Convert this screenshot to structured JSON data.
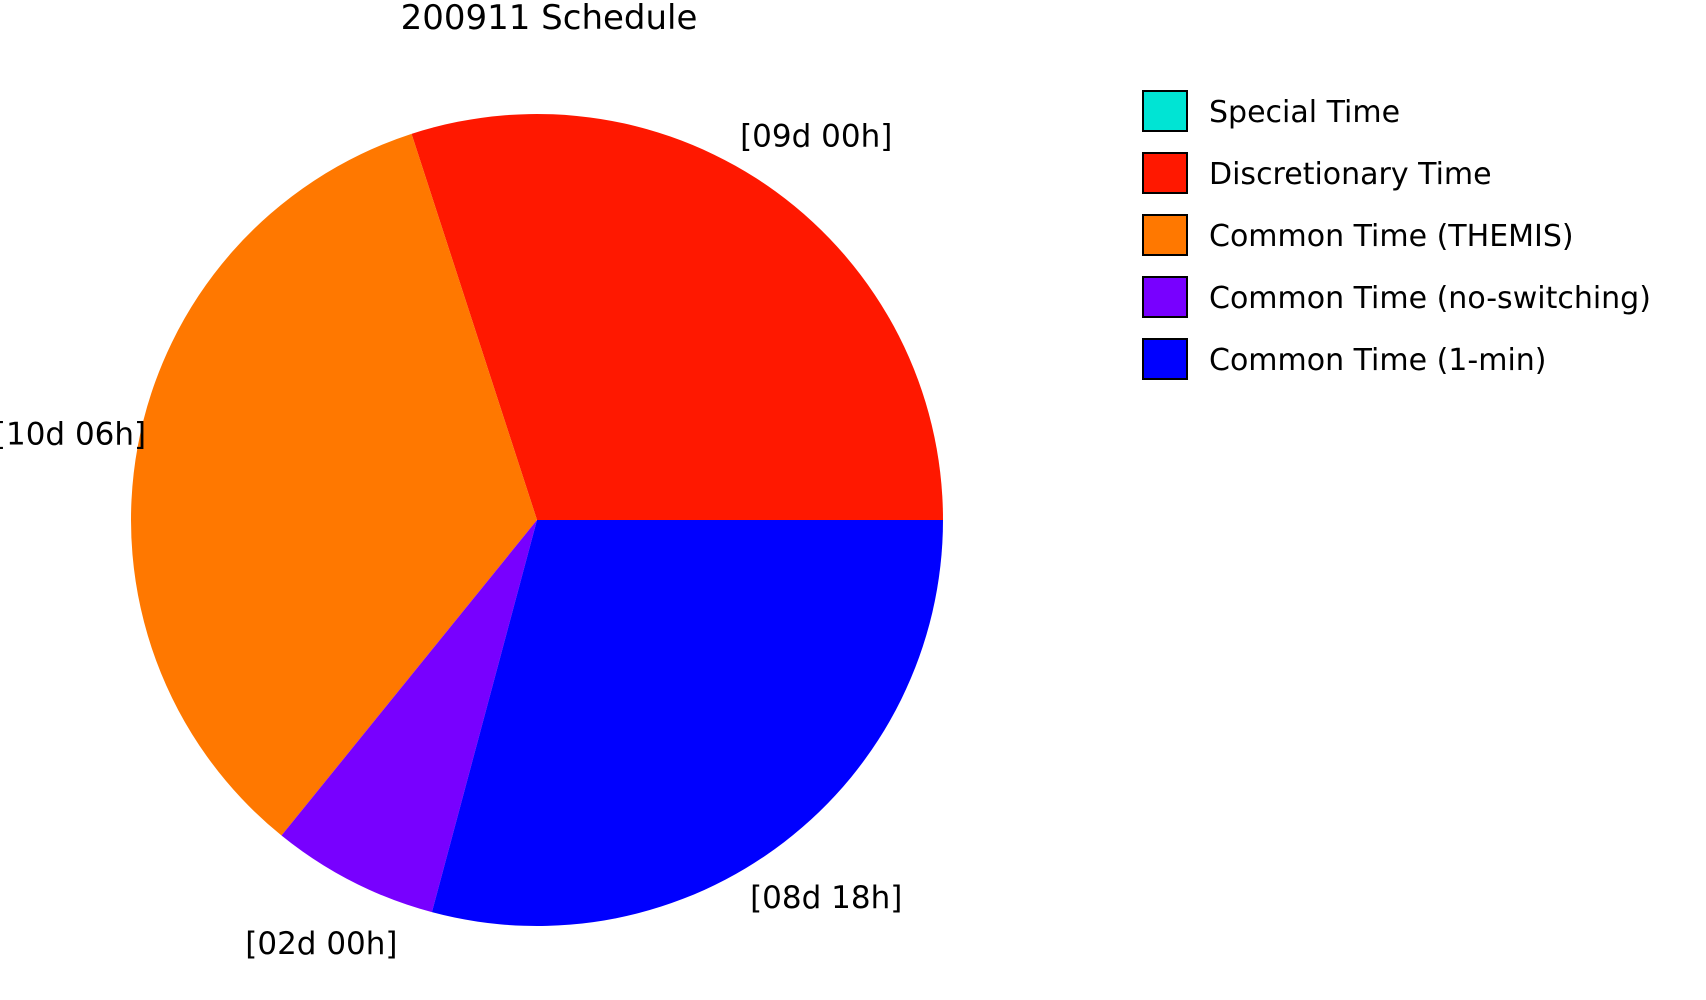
{
  "chart_data": {
    "type": "pie",
    "title": "200911 Schedule",
    "direction": "counterclockwise-from-east",
    "slices": [
      {
        "name": "Discretionary Time",
        "value": 9.0,
        "label": "[09d 00h]",
        "color": "#ff1800"
      },
      {
        "name": "Common Time (THEMIS)",
        "value": 10.25,
        "label": "[10d 06h]",
        "color": "#ff7800"
      },
      {
        "name": "Common Time (no-switching)",
        "value": 2.0,
        "label": "[02d 00h]",
        "color": "#7800ff"
      },
      {
        "name": "Common Time (1-min)",
        "value": 8.75,
        "label": "[08d 18h]",
        "color": "#0000ff"
      }
    ],
    "legend": {
      "position": "top-right",
      "items": [
        {
          "name": "Special Time",
          "color": "#00e4d4"
        },
        {
          "name": "Discretionary Time",
          "color": "#ff1800"
        },
        {
          "name": "Common Time (THEMIS)",
          "color": "#ff7800"
        },
        {
          "name": "Common Time (no-switching)",
          "color": "#7800ff"
        },
        {
          "name": "Common Time (1-min)",
          "color": "#0000ff"
        }
      ]
    }
  }
}
